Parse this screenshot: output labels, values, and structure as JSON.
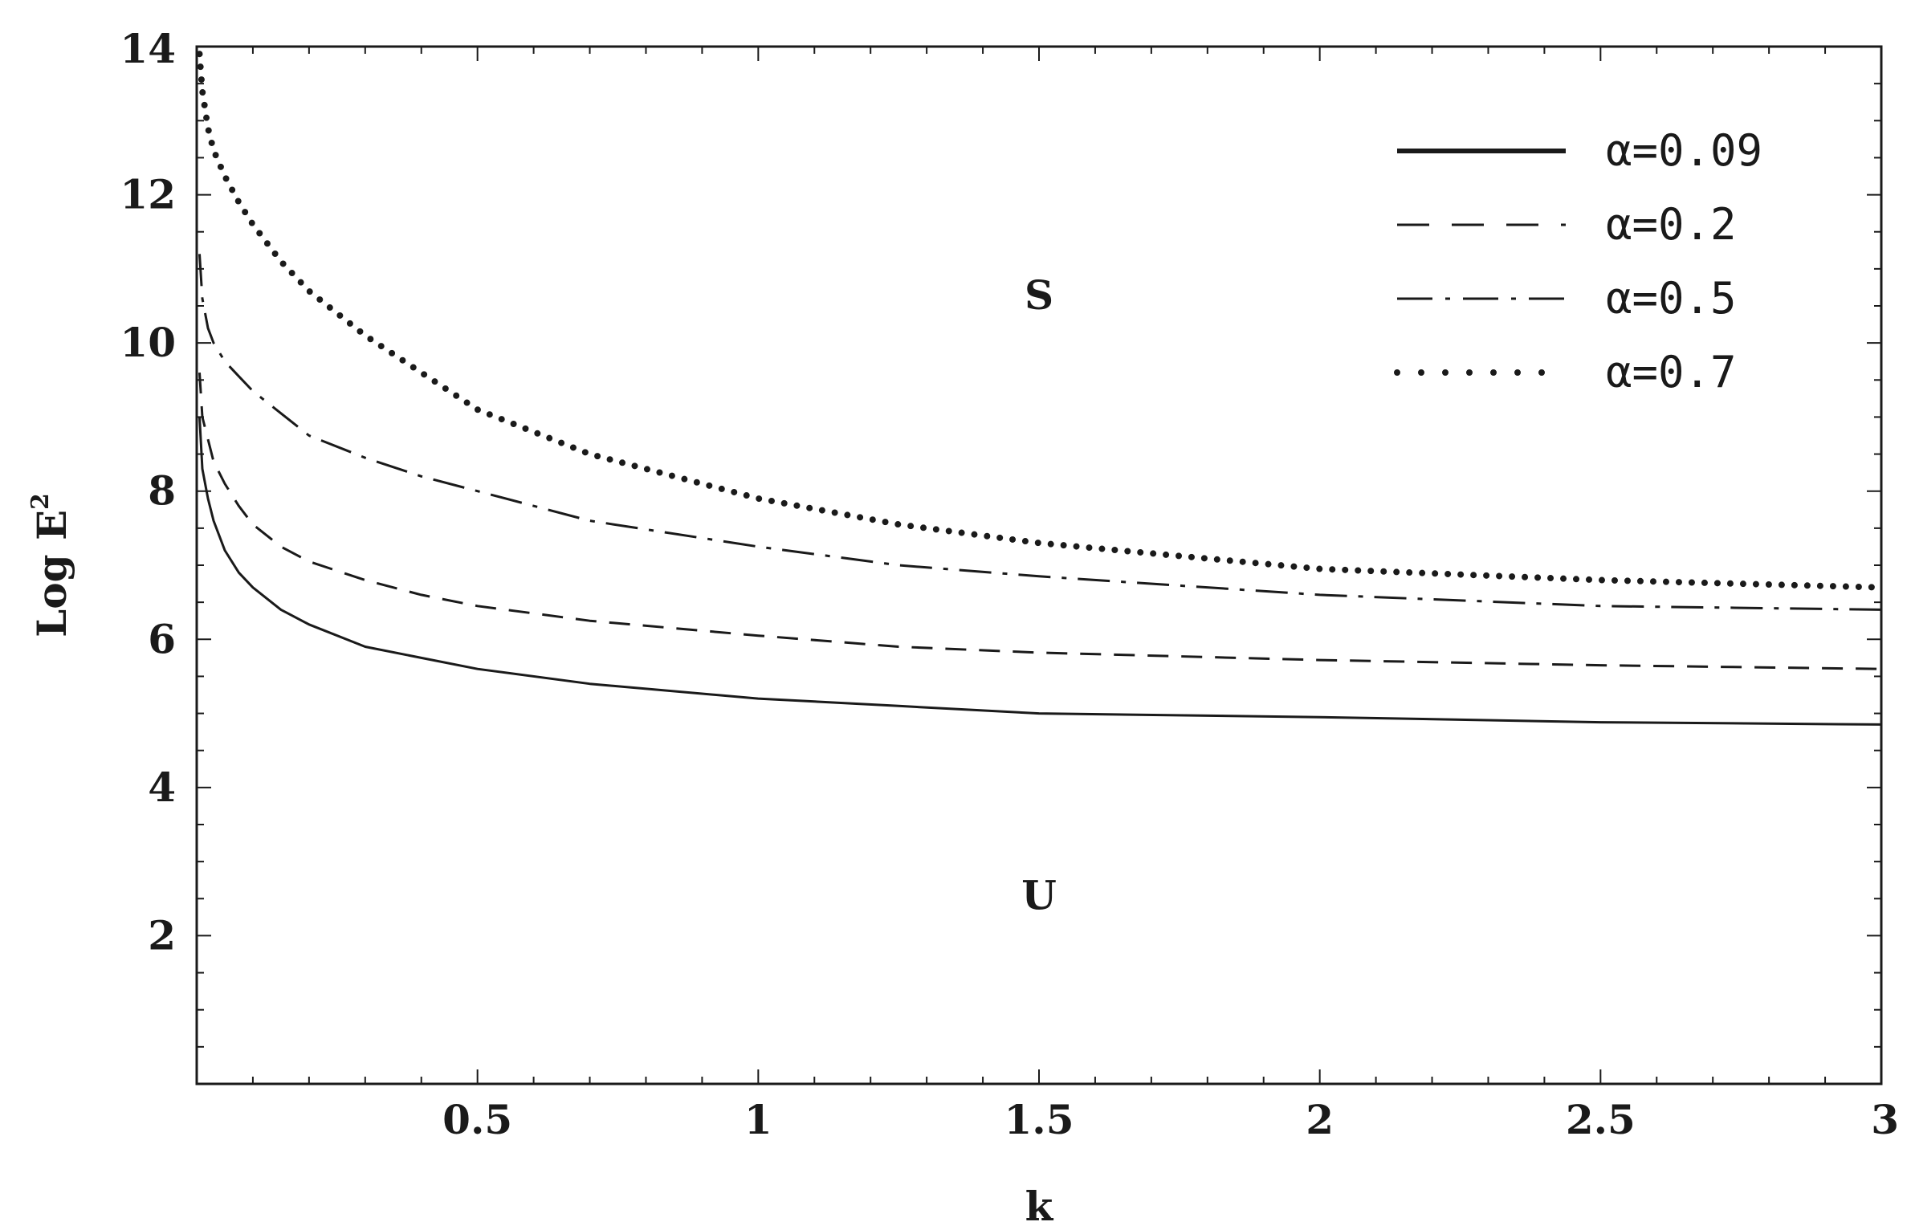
{
  "chart_data": {
    "type": "line",
    "xlabel": "k",
    "ylabel": "Log E",
    "ylabel_superscript": "2",
    "xlim": [
      0,
      3
    ],
    "ylim": [
      0,
      14
    ],
    "grid": false,
    "legend_position": "top-right",
    "x_ticks": [
      "0.5",
      "1",
      "1.5",
      "2",
      "2.5",
      "3"
    ],
    "y_ticks": [
      "2",
      "4",
      "6",
      "8",
      "10",
      "12",
      "14"
    ],
    "annotations": [
      {
        "text": "S",
        "x": 1.5,
        "y": 10.6
      },
      {
        "text": "U",
        "x": 1.5,
        "y": 2.5
      }
    ],
    "series": [
      {
        "name": "α=0.09",
        "style": "solid",
        "x": [
          0.005,
          0.01,
          0.02,
          0.03,
          0.05,
          0.075,
          0.1,
          0.15,
          0.2,
          0.3,
          0.4,
          0.5,
          0.7,
          1.0,
          1.25,
          1.5,
          2.0,
          2.5,
          3.0
        ],
        "y": [
          9.0,
          8.3,
          7.9,
          7.6,
          7.2,
          6.9,
          6.7,
          6.4,
          6.2,
          5.9,
          5.75,
          5.6,
          5.4,
          5.2,
          5.1,
          5.0,
          4.95,
          4.88,
          4.85
        ]
      },
      {
        "name": "α=0.2",
        "style": "dashed",
        "x": [
          0.005,
          0.01,
          0.02,
          0.03,
          0.05,
          0.075,
          0.1,
          0.15,
          0.2,
          0.3,
          0.4,
          0.5,
          0.7,
          1.0,
          1.25,
          1.5,
          2.0,
          2.5,
          3.0
        ],
        "y": [
          9.6,
          9.0,
          8.7,
          8.4,
          8.1,
          7.8,
          7.55,
          7.25,
          7.05,
          6.8,
          6.6,
          6.45,
          6.25,
          6.05,
          5.9,
          5.82,
          5.72,
          5.65,
          5.6
        ]
      },
      {
        "name": "α=0.5",
        "style": "dashdot",
        "x": [
          0.005,
          0.01,
          0.02,
          0.03,
          0.05,
          0.075,
          0.1,
          0.15,
          0.2,
          0.3,
          0.4,
          0.5,
          0.7,
          1.0,
          1.25,
          1.5,
          2.0,
          2.5,
          3.0
        ],
        "y": [
          11.2,
          10.6,
          10.2,
          10.0,
          9.75,
          9.55,
          9.35,
          9.05,
          8.75,
          8.45,
          8.2,
          8.0,
          7.6,
          7.25,
          7.0,
          6.85,
          6.6,
          6.45,
          6.4
        ]
      },
      {
        "name": "α=0.7",
        "style": "dotted",
        "x": [
          0.005,
          0.01,
          0.02,
          0.03,
          0.05,
          0.075,
          0.1,
          0.15,
          0.2,
          0.3,
          0.4,
          0.5,
          0.7,
          1.0,
          1.25,
          1.5,
          2.0,
          2.5,
          3.0
        ],
        "y": [
          13.9,
          13.4,
          12.9,
          12.6,
          12.25,
          11.9,
          11.6,
          11.1,
          10.7,
          10.1,
          9.6,
          9.1,
          8.5,
          7.9,
          7.55,
          7.3,
          6.95,
          6.8,
          6.7
        ]
      }
    ]
  }
}
